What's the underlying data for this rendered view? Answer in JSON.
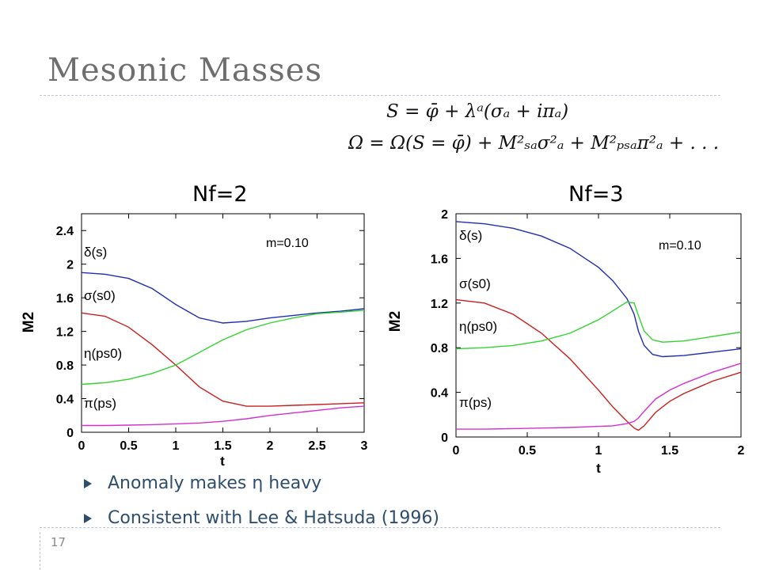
{
  "slide": {
    "title": "Mesonic Masses",
    "page_number": "17",
    "formula1": "S = φ̄ + λᵃ(σₐ + iπₐ)",
    "formula2": "Ω = Ω(S = φ̄) + M²ₛₐσ²ₐ + M²ₚₛₐπ²ₐ + . . .",
    "bullets": [
      "Anomaly makes η heavy",
      "Consistent with Lee & Hatsuda (1996)"
    ],
    "colors": {
      "title": "#6e6e6e",
      "bullet_text": "#2d4e6e",
      "rule": "#b9c6d6"
    }
  },
  "chart_data": [
    {
      "type": "line",
      "title": "Nf=2",
      "annotation": "m=0.10",
      "xlabel": "t",
      "ylabel": "M2",
      "xlim": [
        0,
        3
      ],
      "ylim": [
        0,
        2.6
      ],
      "xticks": [
        "0",
        "0.5",
        "1",
        "1.5",
        "2",
        "2.5",
        "3"
      ],
      "yticks": [
        "0",
        "0.4",
        "0.8",
        "1.2",
        "1.6",
        "2",
        "2.4"
      ],
      "series": [
        {
          "name": "δ(s)",
          "color": "#1f2fb0",
          "x": [
            0,
            0.25,
            0.5,
            0.75,
            1.0,
            1.25,
            1.5,
            1.75,
            2.0,
            2.25,
            2.5,
            2.75,
            3.0
          ],
          "y": [
            1.9,
            1.88,
            1.83,
            1.71,
            1.52,
            1.36,
            1.3,
            1.32,
            1.36,
            1.39,
            1.42,
            1.44,
            1.47
          ]
        },
        {
          "name": "σ(s0)",
          "color": "#c8201e",
          "x": [
            0,
            0.25,
            0.5,
            0.75,
            1.0,
            1.25,
            1.5,
            1.75,
            2.0,
            2.25,
            2.5,
            2.75,
            3.0
          ],
          "y": [
            1.42,
            1.38,
            1.25,
            1.04,
            0.8,
            0.54,
            0.37,
            0.31,
            0.31,
            0.32,
            0.33,
            0.34,
            0.35
          ]
        },
        {
          "name": "η(ps0)",
          "color": "#32d32f",
          "x": [
            0,
            0.25,
            0.5,
            0.75,
            1.0,
            1.25,
            1.5,
            1.75,
            2.0,
            2.25,
            2.5,
            2.75,
            3.0
          ],
          "y": [
            0.57,
            0.59,
            0.63,
            0.7,
            0.8,
            0.95,
            1.1,
            1.22,
            1.3,
            1.36,
            1.41,
            1.43,
            1.45
          ]
        },
        {
          "name": "π(ps)",
          "color": "#d330d0",
          "x": [
            0,
            0.25,
            0.5,
            0.75,
            1.0,
            1.25,
            1.5,
            1.75,
            2.0,
            2.25,
            2.5,
            2.75,
            3.0
          ],
          "y": [
            0.08,
            0.08,
            0.085,
            0.09,
            0.1,
            0.11,
            0.13,
            0.16,
            0.2,
            0.23,
            0.26,
            0.29,
            0.31
          ]
        }
      ]
    },
    {
      "type": "line",
      "title": "Nf=3",
      "annotation": "m=0.10",
      "xlabel": "t",
      "ylabel": "M2",
      "xlim": [
        0,
        2
      ],
      "ylim": [
        0,
        2
      ],
      "xticks": [
        "0",
        "0.5",
        "1",
        "1.5",
        "2"
      ],
      "yticks": [
        "0",
        "0.4",
        "0.8",
        "1.2",
        "1.6",
        "2"
      ],
      "series": [
        {
          "name": "δ(s)",
          "color": "#1f2fb0",
          "x": [
            0,
            0.2,
            0.4,
            0.6,
            0.8,
            1.0,
            1.1,
            1.2,
            1.25,
            1.28,
            1.32,
            1.38,
            1.45,
            1.6,
            1.8,
            2.0
          ],
          "y": [
            1.93,
            1.91,
            1.87,
            1.8,
            1.69,
            1.52,
            1.4,
            1.24,
            1.1,
            0.95,
            0.82,
            0.74,
            0.72,
            0.73,
            0.76,
            0.79
          ]
        },
        {
          "name": "σ(s0)",
          "color": "#c8201e",
          "x": [
            0,
            0.2,
            0.4,
            0.6,
            0.8,
            1.0,
            1.1,
            1.2,
            1.25,
            1.28,
            1.32,
            1.4,
            1.5,
            1.6,
            1.8,
            2.0
          ],
          "y": [
            1.23,
            1.2,
            1.1,
            0.93,
            0.7,
            0.42,
            0.27,
            0.14,
            0.08,
            0.06,
            0.1,
            0.22,
            0.32,
            0.39,
            0.5,
            0.58
          ]
        },
        {
          "name": "η(ps0)",
          "color": "#32d32f",
          "x": [
            0,
            0.2,
            0.4,
            0.6,
            0.8,
            1.0,
            1.1,
            1.2,
            1.25,
            1.28,
            1.32,
            1.38,
            1.45,
            1.6,
            1.8,
            2.0
          ],
          "y": [
            0.79,
            0.8,
            0.82,
            0.86,
            0.93,
            1.05,
            1.13,
            1.21,
            1.2,
            1.09,
            0.95,
            0.87,
            0.85,
            0.86,
            0.9,
            0.94
          ]
        },
        {
          "name": "π(ps)",
          "color": "#d330d0",
          "x": [
            0,
            0.2,
            0.4,
            0.6,
            0.8,
            1.0,
            1.1,
            1.2,
            1.25,
            1.28,
            1.32,
            1.4,
            1.5,
            1.6,
            1.8,
            2.0
          ],
          "y": [
            0.07,
            0.07,
            0.075,
            0.08,
            0.085,
            0.095,
            0.1,
            0.12,
            0.14,
            0.17,
            0.23,
            0.34,
            0.42,
            0.48,
            0.58,
            0.66
          ]
        }
      ]
    }
  ]
}
